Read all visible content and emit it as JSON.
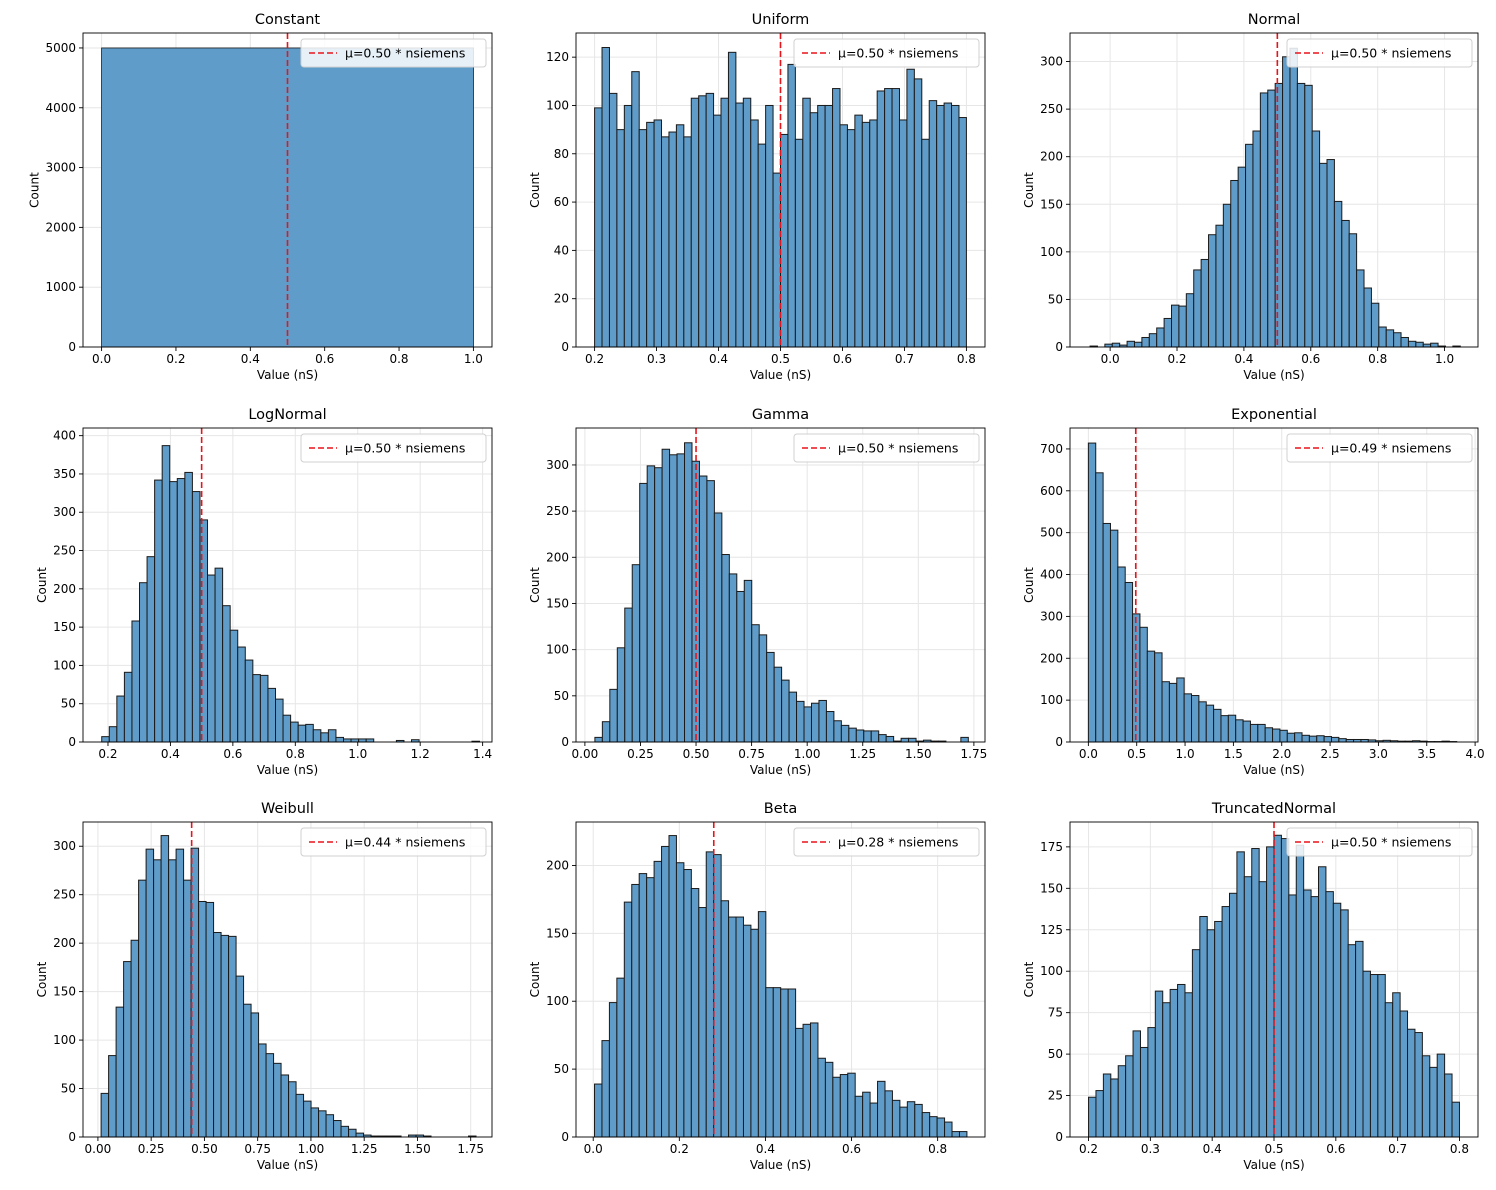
{
  "colors": {
    "bar_fill": "#5f9cc9",
    "bar_edge": "#1a1a1a",
    "mean_line": "#e8141a",
    "grid": "#e6e6e6"
  },
  "chart_data": [
    {
      "type": "bar",
      "title": "Constant",
      "xlabel": "Value (nS)",
      "ylabel": "Count",
      "xlim": [
        -0.05,
        1.05
      ],
      "ylim": [
        0,
        5250
      ],
      "xticks": [
        0.0,
        0.2,
        0.4,
        0.6,
        0.8,
        1.0
      ],
      "xtick_labels": [
        "0.0",
        "0.2",
        "0.4",
        "0.6",
        "0.8",
        "1.0"
      ],
      "yticks": [
        0,
        1000,
        2000,
        3000,
        4000,
        5000
      ],
      "bin_start": 0.0,
      "bin_width": 1.0,
      "counts": [
        5000
      ],
      "mean": 0.5,
      "legend": "μ=0.50 * nsiemens",
      "legend_position": "upper right",
      "grid": true
    },
    {
      "type": "bar",
      "title": "Uniform",
      "xlabel": "Value (nS)",
      "ylabel": "Count",
      "xlim": [
        0.17,
        0.83
      ],
      "ylim": [
        0,
        130
      ],
      "xticks": [
        0.2,
        0.3,
        0.4,
        0.5,
        0.6,
        0.7,
        0.8
      ],
      "xtick_labels": [
        "0.2",
        "0.3",
        "0.4",
        "0.5",
        "0.6",
        "0.7",
        "0.8"
      ],
      "yticks": [
        0,
        20,
        40,
        60,
        80,
        100,
        120
      ],
      "bin_start": 0.2,
      "bin_width": 0.012,
      "counts": [
        99,
        124,
        105,
        90,
        100,
        114,
        90,
        93,
        94,
        87,
        89,
        92,
        87,
        103,
        104,
        105,
        96,
        103,
        122,
        101,
        103,
        94,
        84,
        100,
        72,
        88,
        117,
        86,
        103,
        97,
        100,
        100,
        107,
        92,
        90,
        96,
        93,
        94,
        106,
        107,
        107,
        94,
        115,
        111,
        86,
        102,
        100,
        101,
        100,
        95
      ],
      "mean": 0.5,
      "legend": "μ=0.50 * nsiemens",
      "legend_position": "upper right",
      "grid": true
    },
    {
      "type": "bar",
      "title": "Normal",
      "xlabel": "Value (nS)",
      "ylabel": "Count",
      "xlim": [
        -0.12,
        1.1
      ],
      "ylim": [
        0,
        330
      ],
      "xticks": [
        0.0,
        0.2,
        0.4,
        0.6,
        0.8,
        1.0
      ],
      "xtick_labels": [
        "0.0",
        "0.2",
        "0.4",
        "0.6",
        "0.8",
        "1.0"
      ],
      "yticks": [
        0,
        50,
        100,
        150,
        200,
        250,
        300
      ],
      "bin_start": -0.06,
      "bin_width": 0.02214,
      "counts": [
        1,
        0,
        3,
        4,
        2,
        6,
        5,
        10,
        14,
        20,
        30,
        44,
        43,
        56,
        81,
        92,
        118,
        128,
        150,
        175,
        189,
        213,
        227,
        267,
        270,
        277,
        305,
        314,
        277,
        275,
        227,
        193,
        197,
        153,
        133,
        119,
        81,
        62,
        46,
        21,
        18,
        15,
        10,
        6,
        5,
        3,
        4,
        1,
        0,
        1
      ],
      "mean": 0.5,
      "legend": "μ=0.50 * nsiemens",
      "legend_position": "upper right",
      "grid": true
    },
    {
      "type": "bar",
      "title": "LogNormal",
      "xlabel": "Value (nS)",
      "ylabel": "Count",
      "xlim": [
        0.12,
        1.43
      ],
      "ylim": [
        0,
        410
      ],
      "xticks": [
        0.2,
        0.4,
        0.6,
        0.8,
        1.0,
        1.2,
        1.4
      ],
      "xtick_labels": [
        "0.2",
        "0.4",
        "0.6",
        "0.8",
        "1.0",
        "1.2",
        "1.4"
      ],
      "yticks": [
        0,
        50,
        100,
        150,
        200,
        250,
        300,
        350,
        400
      ],
      "bin_start": 0.18,
      "bin_width": 0.0242,
      "counts": [
        7,
        20,
        60,
        91,
        158,
        208,
        242,
        342,
        387,
        340,
        344,
        352,
        327,
        290,
        218,
        227,
        178,
        146,
        124,
        107,
        88,
        87,
        70,
        56,
        35,
        26,
        22,
        23,
        16,
        12,
        16,
        6,
        4,
        4,
        4,
        4,
        0,
        0,
        0,
        2,
        0,
        3,
        0,
        0,
        0,
        0,
        0,
        0,
        0,
        1
      ],
      "mean": 0.5,
      "legend": "μ=0.50 * nsiemens",
      "legend_position": "upper right",
      "grid": true
    },
    {
      "type": "bar",
      "title": "Gamma",
      "xlabel": "Value (nS)",
      "ylabel": "Count",
      "xlim": [
        -0.04,
        1.8
      ],
      "ylim": [
        0,
        340
      ],
      "xticks": [
        0.0,
        0.25,
        0.5,
        0.75,
        1.0,
        1.25,
        1.5,
        1.75
      ],
      "xtick_labels": [
        "0.00",
        "0.25",
        "0.50",
        "0.75",
        "1.00",
        "1.25",
        "1.50",
        "1.75"
      ],
      "yticks": [
        0,
        50,
        100,
        150,
        200,
        250,
        300
      ],
      "bin_start": 0.045,
      "bin_width": 0.0336,
      "counts": [
        5,
        22,
        57,
        102,
        145,
        192,
        280,
        299,
        297,
        317,
        311,
        312,
        324,
        304,
        288,
        283,
        248,
        203,
        182,
        163,
        175,
        127,
        116,
        97,
        81,
        67,
        54,
        44,
        38,
        42,
        45,
        33,
        23,
        18,
        15,
        13,
        12,
        12,
        8,
        6,
        1,
        4,
        4,
        1,
        2,
        1,
        1,
        0,
        0,
        5
      ],
      "mean": 0.5,
      "legend": "μ=0.50 * nsiemens",
      "legend_position": "upper right",
      "grid": true
    },
    {
      "type": "bar",
      "title": "Exponential",
      "xlabel": "Value (nS)",
      "ylabel": "Count",
      "xlim": [
        -0.19,
        4.03
      ],
      "ylim": [
        0,
        750
      ],
      "xticks": [
        0.0,
        0.5,
        1.0,
        1.5,
        2.0,
        2.5,
        3.0,
        3.5,
        4.0
      ],
      "xtick_labels": [
        "0.0",
        "0.5",
        "1.0",
        "1.5",
        "2.0",
        "2.5",
        "3.0",
        "3.5",
        "4.0"
      ],
      "yticks": [
        0,
        100,
        200,
        300,
        400,
        500,
        600,
        700
      ],
      "bin_start": 0.0,
      "bin_width": 0.0762,
      "counts": [
        714,
        643,
        522,
        506,
        418,
        381,
        306,
        274,
        217,
        213,
        144,
        140,
        153,
        115,
        111,
        96,
        88,
        78,
        63,
        64,
        53,
        50,
        42,
        42,
        34,
        31,
        28,
        21,
        22,
        16,
        14,
        15,
        13,
        11,
        8,
        6,
        6,
        6,
        5,
        3,
        4,
        3,
        2,
        2,
        3,
        2,
        1,
        1,
        2,
        1
      ],
      "mean": 0.49,
      "legend": "μ=0.49 * nsiemens",
      "legend_position": "upper right",
      "grid": true
    },
    {
      "type": "bar",
      "title": "Weibull",
      "xlabel": "Value (nS)",
      "ylabel": "Count",
      "xlim": [
        -0.07,
        1.85
      ],
      "ylim": [
        0,
        325
      ],
      "xticks": [
        0.0,
        0.25,
        0.5,
        0.75,
        1.0,
        1.25,
        1.5,
        1.75
      ],
      "xtick_labels": [
        "0.00",
        "0.25",
        "0.50",
        "0.75",
        "1.00",
        "1.25",
        "1.50",
        "1.75"
      ],
      "yticks": [
        0,
        50,
        100,
        150,
        200,
        250,
        300
      ],
      "bin_start": 0.015,
      "bin_width": 0.0352,
      "counts": [
        45,
        84,
        134,
        181,
        203,
        265,
        297,
        286,
        311,
        286,
        297,
        265,
        298,
        243,
        242,
        211,
        208,
        207,
        166,
        137,
        128,
        96,
        86,
        76,
        64,
        57,
        44,
        37,
        30,
        27,
        23,
        17,
        11,
        8,
        4,
        2,
        1,
        1,
        1,
        1,
        0,
        2,
        2,
        1,
        0,
        0,
        0,
        0,
        0,
        1
      ],
      "mean": 0.44,
      "legend": "μ=0.44 * nsiemens",
      "legend_position": "upper right",
      "grid": true
    },
    {
      "type": "bar",
      "title": "Beta",
      "xlabel": "Value (nS)",
      "ylabel": "Count",
      "xlim": [
        -0.04,
        0.91
      ],
      "ylim": [
        0,
        232
      ],
      "xticks": [
        0.0,
        0.2,
        0.4,
        0.6,
        0.8
      ],
      "xtick_labels": [
        "0.0",
        "0.2",
        "0.4",
        "0.6",
        "0.8"
      ],
      "yticks": [
        0,
        50,
        100,
        150,
        200
      ],
      "bin_start": 0.003,
      "bin_width": 0.0173,
      "counts": [
        39,
        71,
        99,
        117,
        173,
        186,
        194,
        191,
        203,
        214,
        222,
        202,
        197,
        183,
        169,
        210,
        208,
        174,
        162,
        162,
        156,
        153,
        166,
        110,
        110,
        109,
        109,
        80,
        83,
        84,
        58,
        55,
        44,
        46,
        47,
        30,
        33,
        25,
        41,
        34,
        27,
        22,
        26,
        24,
        18,
        15,
        14,
        11,
        4,
        4
      ],
      "mean": 0.28,
      "legend": "μ=0.28 * nsiemens",
      "legend_position": "upper right",
      "grid": true
    },
    {
      "type": "bar",
      "title": "TruncatedNormal",
      "xlabel": "Value (nS)",
      "ylabel": "Count",
      "xlim": [
        0.17,
        0.83
      ],
      "ylim": [
        0,
        190
      ],
      "xticks": [
        0.2,
        0.3,
        0.4,
        0.5,
        0.6,
        0.7,
        0.8
      ],
      "xtick_labels": [
        "0.2",
        "0.3",
        "0.4",
        "0.5",
        "0.6",
        "0.7",
        "0.8"
      ],
      "yticks": [
        0,
        25,
        50,
        75,
        100,
        125,
        150,
        175
      ],
      "bin_start": 0.2,
      "bin_width": 0.012,
      "counts": [
        24,
        28,
        38,
        35,
        43,
        49,
        64,
        54,
        66,
        88,
        81,
        89,
        92,
        87,
        113,
        133,
        125,
        130,
        139,
        147,
        172,
        157,
        174,
        154,
        175,
        182,
        180,
        146,
        176,
        149,
        145,
        163,
        148,
        141,
        137,
        116,
        118,
        100,
        98,
        98,
        81,
        87,
        76,
        65,
        63,
        49,
        42,
        50,
        38,
        21
      ],
      "mean": 0.5,
      "legend": "μ=0.50 * nsiemens",
      "legend_position": "upper right",
      "grid": true
    }
  ]
}
